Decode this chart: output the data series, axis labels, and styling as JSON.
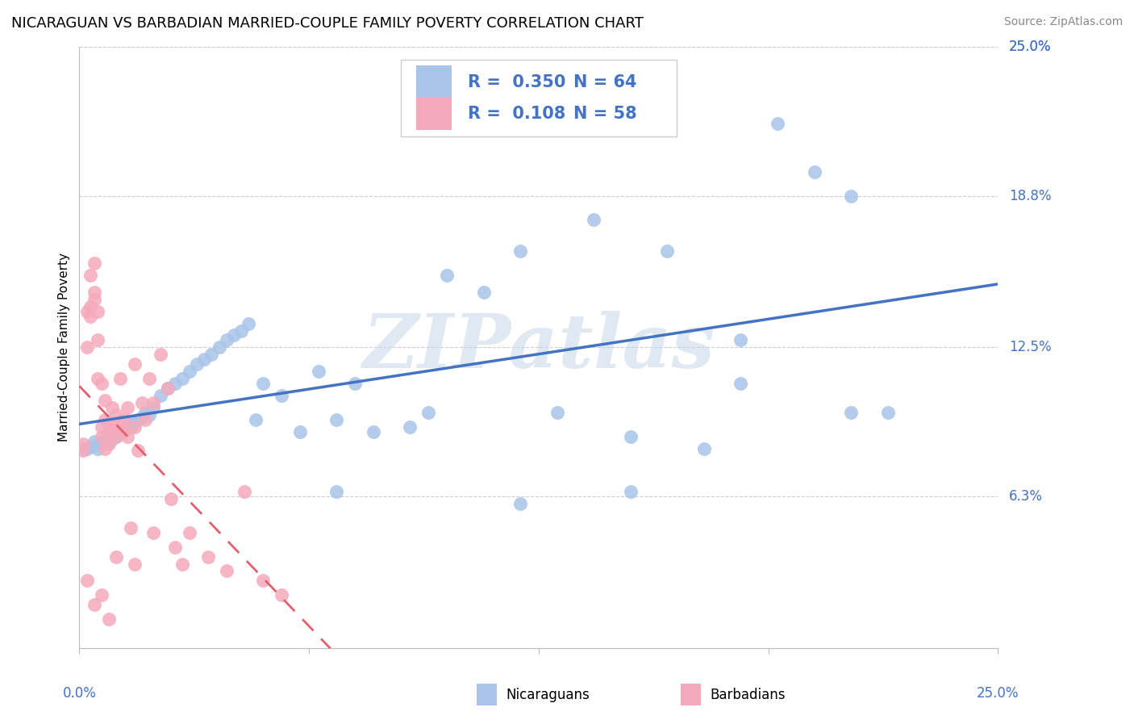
{
  "title": "NICARAGUAN VS BARBADIAN MARRIED-COUPLE FAMILY POVERTY CORRELATION CHART",
  "source": "Source: ZipAtlas.com",
  "ylabel": "Married-Couple Family Poverty",
  "xlim": [
    0,
    0.25
  ],
  "ylim": [
    0,
    0.25
  ],
  "ytick_labels": [
    "6.3%",
    "12.5%",
    "18.8%",
    "25.0%"
  ],
  "ytick_values": [
    0.063,
    0.125,
    0.188,
    0.25
  ],
  "series1_name": "Nicaraguans",
  "series1_color": "#a8c4e8",
  "series1_R": 0.35,
  "series1_N": 64,
  "series2_name": "Barbadians",
  "series2_color": "#f5aabb",
  "series2_R": 0.108,
  "series2_N": 58,
  "trend1_color": "#4472c4",
  "trend2_color": "#e06070",
  "axis_label_color": "#4472c4",
  "title_fontsize": 13,
  "source_fontsize": 10,
  "ylabel_fontsize": 11,
  "tick_fontsize": 12,
  "legend_fontsize": 15,
  "background_color": "#ffffff",
  "grid_color": "#cccccc",
  "watermark_text": "ZIPatlas",
  "series1_x": [
    0.001,
    0.002,
    0.003,
    0.004,
    0.005,
    0.005,
    0.006,
    0.007,
    0.008,
    0.008,
    0.009,
    0.01,
    0.01,
    0.011,
    0.012,
    0.013,
    0.014,
    0.015,
    0.016,
    0.017,
    0.018,
    0.019,
    0.02,
    0.022,
    0.024,
    0.026,
    0.028,
    0.03,
    0.032,
    0.034,
    0.036,
    0.038,
    0.04,
    0.042,
    0.044,
    0.046,
    0.048,
    0.05,
    0.055,
    0.06,
    0.065,
    0.07,
    0.075,
    0.08,
    0.09,
    0.1,
    0.11,
    0.12,
    0.13,
    0.14,
    0.15,
    0.16,
    0.17,
    0.18,
    0.19,
    0.2,
    0.21,
    0.22,
    0.21,
    0.18,
    0.15,
    0.12,
    0.095,
    0.07
  ],
  "series1_y": [
    0.083,
    0.083,
    0.084,
    0.086,
    0.085,
    0.083,
    0.085,
    0.087,
    0.088,
    0.086,
    0.087,
    0.09,
    0.088,
    0.092,
    0.091,
    0.093,
    0.092,
    0.094,
    0.095,
    0.096,
    0.098,
    0.097,
    0.1,
    0.105,
    0.108,
    0.11,
    0.112,
    0.115,
    0.118,
    0.12,
    0.122,
    0.125,
    0.128,
    0.13,
    0.132,
    0.135,
    0.095,
    0.11,
    0.105,
    0.09,
    0.115,
    0.095,
    0.11,
    0.09,
    0.092,
    0.155,
    0.148,
    0.165,
    0.098,
    0.178,
    0.088,
    0.165,
    0.083,
    0.128,
    0.218,
    0.198,
    0.188,
    0.098,
    0.098,
    0.11,
    0.065,
    0.06,
    0.098,
    0.065
  ],
  "series2_x": [
    0.001,
    0.001,
    0.002,
    0.002,
    0.003,
    0.003,
    0.003,
    0.004,
    0.004,
    0.004,
    0.005,
    0.005,
    0.005,
    0.006,
    0.006,
    0.006,
    0.007,
    0.007,
    0.007,
    0.008,
    0.008,
    0.008,
    0.009,
    0.009,
    0.01,
    0.01,
    0.011,
    0.011,
    0.012,
    0.012,
    0.013,
    0.013,
    0.014,
    0.015,
    0.015,
    0.016,
    0.017,
    0.018,
    0.019,
    0.02,
    0.022,
    0.024,
    0.026,
    0.028,
    0.03,
    0.035,
    0.04,
    0.045,
    0.05,
    0.055,
    0.002,
    0.004,
    0.006,
    0.008,
    0.01,
    0.015,
    0.02,
    0.025
  ],
  "series2_y": [
    0.082,
    0.085,
    0.125,
    0.14,
    0.138,
    0.155,
    0.142,
    0.148,
    0.16,
    0.145,
    0.112,
    0.128,
    0.14,
    0.092,
    0.11,
    0.088,
    0.083,
    0.103,
    0.095,
    0.09,
    0.085,
    0.093,
    0.092,
    0.1,
    0.088,
    0.097,
    0.092,
    0.112,
    0.09,
    0.095,
    0.1,
    0.088,
    0.05,
    0.118,
    0.092,
    0.082,
    0.102,
    0.095,
    0.112,
    0.102,
    0.122,
    0.108,
    0.042,
    0.035,
    0.048,
    0.038,
    0.032,
    0.065,
    0.028,
    0.022,
    0.028,
    0.018,
    0.022,
    0.012,
    0.038,
    0.035,
    0.048,
    0.062
  ]
}
